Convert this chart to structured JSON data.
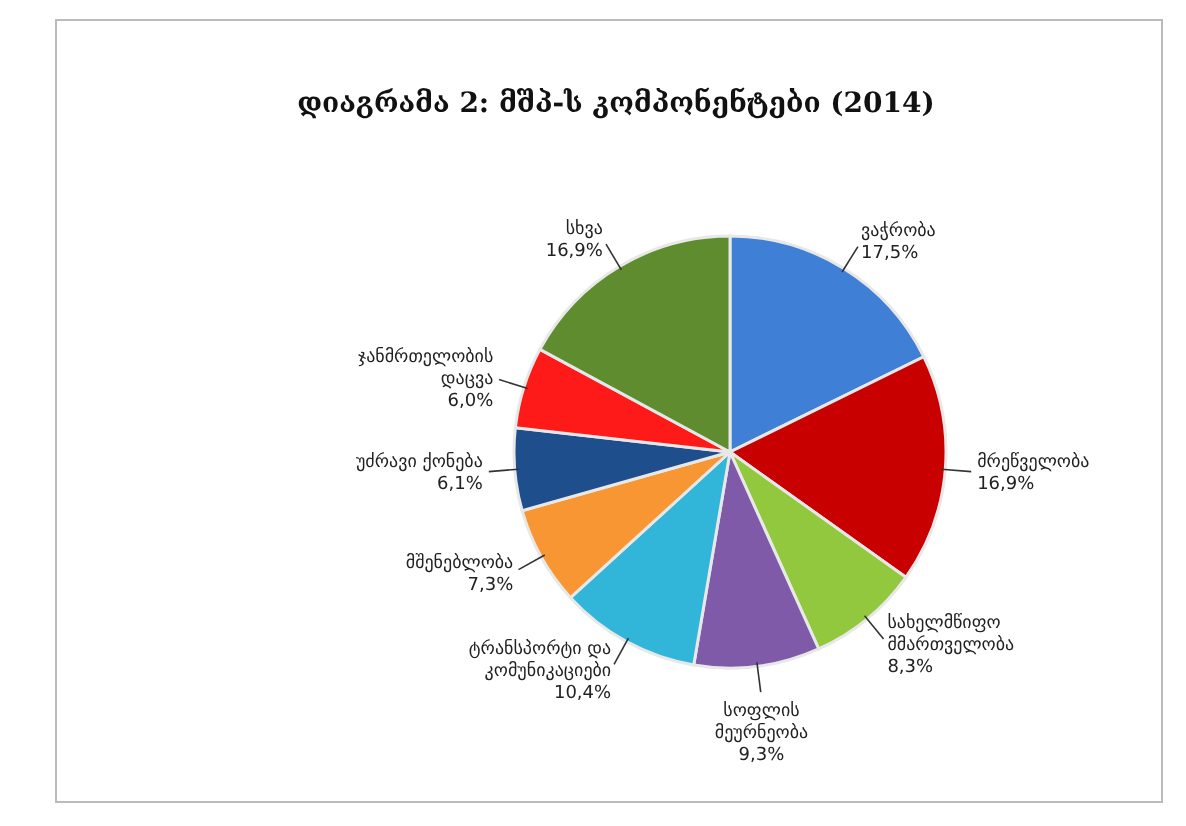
{
  "chart_data": {
    "type": "pie",
    "title": "დიაგრამა 2: მშპ-ს კომპონენტები (2014)",
    "categories": [
      "ვაჭრობა",
      "მრეწველობა",
      "სახელმწიფო მმართველობა",
      "სოფლის მეურნეობა",
      "ტრანსპორტი და კომუნიკაციები",
      "მშენებლობა",
      "უძრავი ქონება",
      "ჯანმრთელობის დაცვა",
      "სხვა"
    ],
    "values": [
      17.5,
      16.9,
      8.3,
      9.3,
      10.4,
      7.3,
      6.1,
      6.0,
      16.9
    ],
    "value_labels": [
      "17,5%",
      "16,9%",
      "8,3%",
      "9,3%",
      "10,4%",
      "7,3%",
      "6,1%",
      "6,0%",
      "16,9%"
    ],
    "colors": [
      "#3f7fd6",
      "#c80000",
      "#92c83e",
      "#7f5aa8",
      "#31b6d9",
      "#f79633",
      "#1f4e8c",
      "#ff1a1a",
      "#5e8c2e"
    ]
  }
}
